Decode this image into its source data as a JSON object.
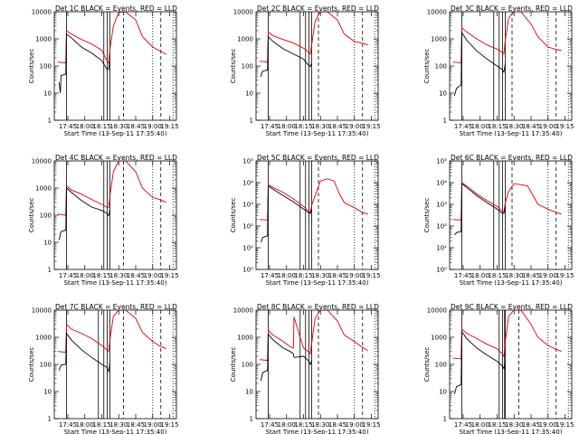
{
  "chart_data": {
    "type": "line",
    "layout": "3x3 grid",
    "ylabel": "Counts/sec",
    "xlabel": "Start Time (13-Sep-11 17:35:40)",
    "x_tick_labels": [
      "17:45",
      "18:00",
      "18:15",
      "18:30",
      "18:45",
      "19:00",
      "19:15"
    ],
    "colors": {
      "events": "#000000",
      "lld": "#e00000"
    },
    "panels": [
      {
        "title": "Det 1C BLACK = Events, RED = LLD",
        "yscale": "log",
        "ylim": [
          1,
          10000
        ],
        "y_tick_labels": [
          "1",
          "10",
          "100",
          "1000",
          "10000"
        ],
        "series": [
          {
            "role": "lld",
            "x": [
              17.6,
              17.72,
              17.73,
              17.8,
              17.95,
              18.1,
              18.25,
              18.32,
              18.35,
              18.37,
              18.42,
              18.5,
              18.6,
              18.75,
              18.85,
              19.0,
              19.1,
              19.2
            ],
            "values": [
              140,
              130,
              2000,
              1500,
              950,
              650,
              380,
              170,
              130,
              400,
              3000,
              9500,
              10000,
              5000,
              1200,
              500,
              370,
              270
            ]
          },
          {
            "role": "events",
            "x": [
              17.62,
              17.64,
              17.65,
              17.72,
              17.73,
              17.8,
              17.95,
              18.1,
              18.25,
              18.32,
              18.35,
              18.37
            ],
            "values": [
              25,
              10,
              45,
              50,
              1500,
              1100,
              500,
              300,
              160,
              80,
              75,
              150
            ]
          }
        ],
        "solid_vlines": [
          17.73,
          18.28,
          18.33,
          18.37
        ],
        "dashed_vlines": [
          18.57,
          19.12
        ],
        "dotted_vlines": [
          19.0,
          19.3
        ]
      },
      {
        "title": "Det 2C BLACK = Events, RED = LLD",
        "yscale": "log",
        "ylim": [
          1,
          10000
        ],
        "y_tick_labels": [
          "1",
          "10",
          "100",
          "1000",
          "10000"
        ],
        "series": [
          {
            "role": "lld",
            "x": [
              17.6,
              17.72,
              17.73,
              17.8,
              17.95,
              18.1,
              18.25,
              18.32,
              18.35,
              18.37,
              18.42,
              18.5,
              18.6,
              18.75,
              18.85,
              19.0,
              19.1,
              19.2
            ],
            "values": [
              150,
              140,
              1800,
              1300,
              950,
              700,
              450,
              330,
              280,
              600,
              4500,
              10000,
              10000,
              5000,
              1500,
              800,
              700,
              600
            ]
          },
          {
            "role": "events",
            "x": [
              17.62,
              17.64,
              17.65,
              17.72,
              17.73,
              17.8,
              17.95,
              18.1,
              18.25,
              18.32,
              18.35,
              18.37
            ],
            "values": [
              40,
              60,
              65,
              70,
              1200,
              800,
              430,
              280,
              180,
              110,
              95,
              130
            ]
          }
        ],
        "solid_vlines": [
          17.73,
          18.2,
          18.28,
          18.33,
          18.37
        ],
        "dashed_vlines": [
          18.47,
          19.12
        ],
        "dotted_vlines": [
          19.0,
          19.3
        ]
      },
      {
        "title": "Det 3C BLACK = Events, RED = LLD",
        "yscale": "log",
        "ylim": [
          1,
          10000
        ],
        "y_tick_labels": [
          "1",
          "10",
          "100",
          "1000",
          "10000"
        ],
        "series": [
          {
            "role": "lld",
            "x": [
              17.6,
              17.72,
              17.73,
              17.8,
              17.95,
              18.1,
              18.25,
              18.32,
              18.35,
              18.37,
              18.42,
              18.5,
              18.6,
              18.75,
              18.85,
              19.0,
              19.1,
              19.2
            ],
            "values": [
              140,
              130,
              2500,
              1800,
              1000,
              600,
              420,
              320,
              280,
              900,
              6000,
              10000,
              10000,
              3500,
              1200,
              500,
              420,
              370
            ]
          },
          {
            "role": "events",
            "x": [
              17.62,
              17.64,
              17.65,
              17.72,
              17.73,
              17.8,
              17.95,
              18.1,
              18.25,
              18.32,
              18.35,
              18.37
            ],
            "values": [
              8,
              12,
              15,
              20,
              1700,
              900,
              360,
              180,
              100,
              75,
              60,
              120
            ]
          }
        ],
        "solid_vlines": [
          17.73,
          18.2,
          18.28,
          18.33,
          18.37
        ],
        "dashed_vlines": [
          18.47,
          19.12
        ],
        "dotted_vlines": [
          19.0,
          19.3
        ]
      },
      {
        "title": "Det 4C BLACK = Events, RED = LLD",
        "yscale": "log",
        "ylim": [
          1,
          10000
        ],
        "y_tick_labels": [
          "1",
          "10",
          "100",
          "1000",
          "10000"
        ],
        "series": [
          {
            "role": "lld",
            "x": [
              17.6,
              17.72,
              17.73,
              17.8,
              17.95,
              18.1,
              18.25,
              18.32,
              18.35,
              18.37,
              18.42,
              18.5,
              18.6,
              18.75,
              18.85,
              19.0,
              19.1,
              19.2
            ],
            "values": [
              110,
              100,
              1200,
              850,
              600,
              380,
              250,
              200,
              190,
              500,
              4000,
              10000,
              10000,
              4000,
              1000,
              450,
              380,
              300
            ]
          },
          {
            "role": "events",
            "x": [
              17.62,
              17.64,
              17.65,
              17.72,
              17.73,
              17.8,
              17.95,
              18.1,
              18.25,
              18.32,
              18.35,
              18.37
            ],
            "values": [
              12,
              20,
              25,
              28,
              1000,
              700,
              350,
              200,
              150,
              120,
              95,
              160
            ]
          }
        ],
        "solid_vlines": [
          17.73,
          18.28,
          18.33,
          18.37
        ],
        "dashed_vlines": [
          18.57,
          19.12
        ],
        "dotted_vlines": [
          19.0,
          19.3
        ]
      },
      {
        "title": "Det 5C BLACK = Events, RED = LLD",
        "yscale": "log",
        "ylim": [
          1,
          100000
        ],
        "y_tick_labels": [
          "10⁰",
          "10¹",
          "10²",
          "10³",
          "10⁴",
          "10⁵"
        ],
        "series": [
          {
            "role": "lld",
            "x": [
              17.6,
              17.72,
              17.73,
              17.8,
              17.95,
              18.1,
              18.25,
              18.32,
              18.35,
              18.37,
              18.42,
              18.5,
              18.6,
              18.7,
              18.78,
              18.85,
              19.0,
              19.1,
              19.2
            ],
            "values": [
              200,
              190,
              8000,
              6000,
              3500,
              1800,
              800,
              500,
              420,
              900,
              2500,
              12000,
              15000,
              12000,
              3000,
              1200,
              700,
              450,
              350
            ]
          },
          {
            "role": "events",
            "x": [
              17.62,
              17.64,
              17.65,
              17.72,
              17.73,
              17.8,
              17.95,
              18.1,
              18.25,
              18.32,
              18.35,
              18.37
            ],
            "values": [
              18,
              25,
              30,
              35,
              7000,
              5000,
              2500,
              1300,
              600,
              420,
              380,
              600
            ]
          }
        ],
        "solid_vlines": [
          17.73,
          18.2,
          18.28,
          18.33,
          18.37
        ],
        "dashed_vlines": [
          18.47,
          19.12
        ],
        "dotted_vlines": [
          19.0,
          19.3
        ]
      },
      {
        "title": "Det 6C BLACK = Events, RED = LLD",
        "yscale": "log",
        "ylim": [
          1,
          100000
        ],
        "y_tick_labels": [
          "10⁰",
          "10¹",
          "10²",
          "10³",
          "10⁴",
          "10⁵"
        ],
        "series": [
          {
            "role": "lld",
            "x": [
              17.6,
              17.72,
              17.73,
              17.8,
              17.95,
              18.1,
              18.25,
              18.32,
              18.35,
              18.37,
              18.42,
              18.5,
              18.6,
              18.7,
              18.78,
              18.85,
              19.0,
              19.1,
              19.2
            ],
            "values": [
              200,
              190,
              10000,
              7000,
              3000,
              1500,
              800,
              500,
              450,
              1200,
              4000,
              9000,
              8000,
              7000,
              2500,
              1000,
              600,
              450,
              350
            ]
          },
          {
            "role": "events",
            "x": [
              17.62,
              17.64,
              17.65,
              17.72,
              17.73,
              17.8,
              17.95,
              18.1,
              18.25,
              18.32,
              18.35,
              18.37
            ],
            "values": [
              40,
              45,
              50,
              55,
              9000,
              6000,
              2500,
              1200,
              600,
              400,
              380,
              700
            ]
          }
        ],
        "solid_vlines": [
          17.73,
          18.2,
          18.28,
          18.33,
          18.37
        ],
        "dashed_vlines": [
          18.47,
          19.12
        ],
        "dotted_vlines": [
          19.0,
          19.3
        ]
      },
      {
        "title": "Det 7C BLACK = Events, RED = LLD",
        "yscale": "log",
        "ylim": [
          1,
          10000
        ],
        "y_tick_labels": [
          "1",
          "10",
          "100",
          "1000",
          "10000"
        ],
        "series": [
          {
            "role": "lld",
            "x": [
              17.6,
              17.72,
              17.73,
              17.8,
              17.95,
              18.1,
              18.25,
              18.32,
              18.35,
              18.37,
              18.42,
              18.5,
              18.6,
              18.75,
              18.85,
              19.0,
              19.1,
              19.2
            ],
            "values": [
              300,
              280,
              3000,
              2000,
              1400,
              900,
              500,
              350,
              300,
              800,
              6000,
              10000,
              10000,
              5000,
              1500,
              700,
              480,
              380
            ]
          },
          {
            "role": "events",
            "x": [
              17.62,
              17.64,
              17.65,
              17.72,
              17.73,
              17.8,
              17.95,
              18.1,
              18.25,
              18.32,
              18.35,
              18.37
            ],
            "values": [
              60,
              80,
              95,
              100,
              1400,
              800,
              350,
              180,
              100,
              80,
              55,
              110
            ]
          }
        ],
        "solid_vlines": [
          17.73,
          18.2,
          18.28,
          18.33,
          18.37
        ],
        "dashed_vlines": [
          18.57,
          19.12
        ],
        "dotted_vlines": [
          19.0,
          19.3
        ]
      },
      {
        "title": "Det 8C BLACK = Events, RED = LLD",
        "yscale": "log",
        "ylim": [
          1,
          10000
        ],
        "y_tick_labels": [
          "1",
          "10",
          "100",
          "1000",
          "10000"
        ],
        "series": [
          {
            "role": "lld",
            "x": [
              17.6,
              17.72,
              17.73,
              17.8,
              17.95,
              18.05,
              18.1,
              18.11,
              18.25,
              18.32,
              18.35,
              18.37,
              18.42,
              18.5,
              18.6,
              18.75,
              18.85,
              19.0,
              19.1,
              19.2
            ],
            "values": [
              150,
              140,
              1800,
              1200,
              700,
              450,
              400,
              5500,
              400,
              300,
              250,
              600,
              5000,
              10000,
              10000,
              4000,
              1200,
              700,
              450,
              320
            ]
          },
          {
            "role": "events",
            "x": [
              17.62,
              17.64,
              17.65,
              17.72,
              17.73,
              17.8,
              17.95,
              18.05,
              18.1,
              18.11,
              18.25,
              18.32,
              18.35,
              18.37
            ],
            "values": [
              25,
              40,
              50,
              60,
              1300,
              800,
              400,
              300,
              250,
              180,
              200,
              140,
              100,
              140
            ]
          }
        ],
        "solid_vlines": [
          17.73,
          18.2,
          18.28,
          18.33,
          18.37
        ],
        "dashed_vlines": [
          18.47,
          19.12
        ],
        "dotted_vlines": [
          19.0,
          19.3
        ]
      },
      {
        "title": "Det 9C BLACK = Events, RED = LLD",
        "yscale": "log",
        "ylim": [
          1,
          10000
        ],
        "y_tick_labels": [
          "1",
          "10",
          "100",
          "1000",
          "10000"
        ],
        "series": [
          {
            "role": "lld",
            "x": [
              17.6,
              17.72,
              17.73,
              17.8,
              17.95,
              18.1,
              18.25,
              18.32,
              18.35,
              18.37,
              18.42,
              18.5,
              18.6,
              18.75,
              18.85,
              19.0,
              19.1,
              19.2
            ],
            "values": [
              170,
              160,
              2000,
              1400,
              900,
              550,
              380,
              250,
              200,
              700,
              6000,
              10000,
              10000,
              3000,
              1000,
              500,
              380,
              300
            ]
          },
          {
            "role": "events",
            "x": [
              17.62,
              17.64,
              17.65,
              17.72,
              17.73,
              17.8,
              17.95,
              18.1,
              18.25,
              18.32,
              18.35,
              18.37
            ],
            "values": [
              8,
              12,
              15,
              18,
              1600,
              900,
              400,
              220,
              130,
              90,
              70,
              150
            ]
          }
        ],
        "solid_vlines": [
          17.73,
          18.28,
          18.33,
          18.36,
          18.37
        ],
        "dashed_vlines": [
          18.57,
          19.12
        ],
        "dotted_vlines": [
          19.0,
          19.3
        ]
      }
    ]
  }
}
